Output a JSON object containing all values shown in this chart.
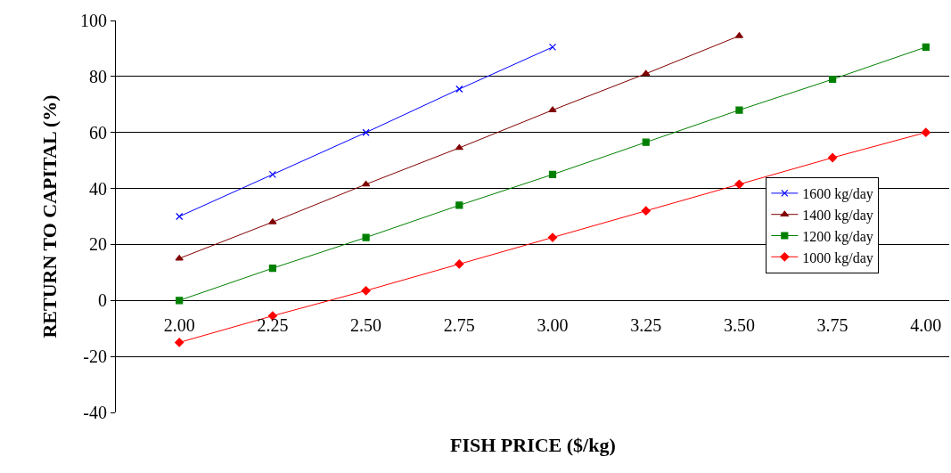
{
  "chart_data": {
    "type": "line",
    "xlabel": "FISH PRICE ($/kg)",
    "ylabel": "RETURN TO CAPITAL (%)",
    "categories": [
      "2.00",
      "2.25",
      "2.50",
      "2.75",
      "3.00",
      "3.25",
      "3.50",
      "3.75",
      "4.00"
    ],
    "series": [
      {
        "name": "1600 kg/day",
        "color": "#0000ff",
        "marker": "cross",
        "values": [
          30,
          45,
          60,
          75.5,
          90.5,
          null,
          null,
          null,
          null
        ]
      },
      {
        "name": "1400 kg/day",
        "color": "#800000",
        "marker": "triangle",
        "values": [
          15,
          28,
          41.5,
          54.5,
          68,
          81,
          94.5,
          null,
          null
        ]
      },
      {
        "name": "1200 kg/day",
        "color": "#008000",
        "marker": "square",
        "values": [
          0,
          11.5,
          22.5,
          34,
          45,
          56.5,
          68,
          79,
          90.5
        ]
      },
      {
        "name": "1000 kg/day",
        "color": "#ff0000",
        "marker": "diamond",
        "values": [
          -15,
          -5.5,
          3.5,
          13,
          22.5,
          32,
          41.5,
          51,
          60
        ]
      }
    ],
    "ylim": [
      -40,
      100
    ],
    "yticks": [
      -40,
      -20,
      0,
      20,
      40,
      60,
      80,
      100
    ],
    "grid": "y",
    "legend": "right",
    "line_style": "solid"
  }
}
